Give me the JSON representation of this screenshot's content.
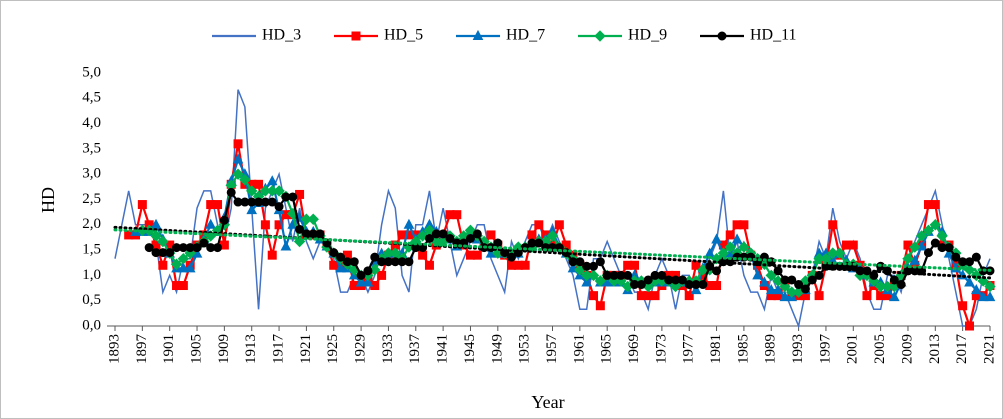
{
  "chart_data": {
    "type": "line",
    "y_label": "HD",
    "x_label": "Year",
    "x": [
      1893,
      1894,
      1895,
      1896,
      1897,
      1898,
      1899,
      1900,
      1901,
      1902,
      1903,
      1904,
      1905,
      1906,
      1907,
      1908,
      1909,
      1910,
      1911,
      1912,
      1913,
      1914,
      1915,
      1916,
      1917,
      1918,
      1919,
      1920,
      1921,
      1922,
      1923,
      1924,
      1925,
      1926,
      1927,
      1928,
      1929,
      1930,
      1931,
      1932,
      1933,
      1934,
      1935,
      1936,
      1937,
      1938,
      1939,
      1940,
      1941,
      1942,
      1943,
      1944,
      1945,
      1946,
      1947,
      1948,
      1949,
      1950,
      1951,
      1952,
      1953,
      1954,
      1955,
      1956,
      1957,
      1958,
      1959,
      1960,
      1961,
      1962,
      1963,
      1964,
      1965,
      1966,
      1967,
      1968,
      1969,
      1970,
      1971,
      1972,
      1973,
      1974,
      1975,
      1976,
      1977,
      1978,
      1979,
      1980,
      1981,
      1982,
      1983,
      1984,
      1985,
      1986,
      1987,
      1988,
      1989,
      1990,
      1991,
      1992,
      1993,
      1994,
      1995,
      1996,
      1997,
      1998,
      1999,
      2000,
      2001,
      2002,
      2003,
      2004,
      2005,
      2006,
      2007,
      2008,
      2009,
      2010,
      2011,
      2012,
      2013,
      2014,
      2015,
      2016,
      2017,
      2018,
      2019,
      2020,
      2021
    ],
    "series": [
      {
        "name": "HD_3",
        "color": "#4472c4",
        "marker": "none",
        "values": [
          1.33,
          2.0,
          2.67,
          2.0,
          2.0,
          2.0,
          1.67,
          0.67,
          1.0,
          0.67,
          1.33,
          1.33,
          2.33,
          2.67,
          2.67,
          2.0,
          1.67,
          2.33,
          4.67,
          4.33,
          2.33,
          0.33,
          2.33,
          2.67,
          3.0,
          2.33,
          1.67,
          2.33,
          1.67,
          1.33,
          1.67,
          1.67,
          1.33,
          0.67,
          0.67,
          1.0,
          1.0,
          0.67,
          1.0,
          2.0,
          2.67,
          2.33,
          1.0,
          0.67,
          2.0,
          2.0,
          2.67,
          1.67,
          2.33,
          1.67,
          1.0,
          1.33,
          1.67,
          2.0,
          2.0,
          1.33,
          1.0,
          0.67,
          1.67,
          1.33,
          1.67,
          2.0,
          2.0,
          1.67,
          2.0,
          1.67,
          1.33,
          1.0,
          0.33,
          0.33,
          1.33,
          1.33,
          1.67,
          1.33,
          1.0,
          1.0,
          0.67,
          0.67,
          0.33,
          1.0,
          1.33,
          1.0,
          0.33,
          1.0,
          1.0,
          0.67,
          1.0,
          1.33,
          1.67,
          2.67,
          1.33,
          1.67,
          1.0,
          0.67,
          0.67,
          0.33,
          1.0,
          0.67,
          0.67,
          0.33,
          0.0,
          0.67,
          1.0,
          1.67,
          1.33,
          2.33,
          1.67,
          1.33,
          1.67,
          1.33,
          0.67,
          0.33,
          0.33,
          1.0,
          1.0,
          0.67,
          1.33,
          1.67,
          2.0,
          2.33,
          2.67,
          2.0,
          1.33,
          0.67,
          0.0,
          0.0,
          0.33,
          1.0,
          1.33
        ]
      },
      {
        "name": "HD_5",
        "color": "#ff0000",
        "marker": "square",
        "values": [
          null,
          null,
          1.8,
          1.8,
          2.4,
          2.0,
          1.6,
          1.2,
          1.6,
          0.8,
          0.8,
          1.2,
          1.6,
          1.8,
          2.4,
          2.4,
          1.6,
          2.8,
          3.6,
          2.8,
          2.8,
          2.8,
          2.0,
          1.4,
          2.0,
          2.2,
          2.2,
          2.6,
          1.8,
          1.8,
          1.8,
          1.6,
          1.2,
          1.2,
          1.4,
          0.8,
          0.8,
          1.0,
          0.8,
          1.0,
          1.4,
          1.6,
          1.8,
          1.8,
          1.8,
          1.4,
          1.2,
          1.6,
          1.8,
          2.2,
          2.2,
          1.6,
          1.4,
          1.4,
          1.6,
          1.8,
          1.6,
          1.4,
          1.2,
          1.2,
          1.2,
          1.8,
          2.0,
          1.8,
          1.6,
          2.0,
          1.6,
          1.4,
          1.2,
          1.0,
          0.6,
          0.4,
          1.0,
          1.0,
          1.0,
          1.2,
          1.2,
          0.6,
          0.6,
          0.6,
          0.8,
          1.0,
          1.0,
          0.8,
          0.6,
          1.2,
          1.0,
          0.8,
          0.8,
          1.6,
          1.8,
          2.0,
          2.0,
          1.4,
          1.2,
          0.8,
          0.6,
          0.6,
          0.8,
          0.6,
          0.6,
          0.6,
          1.0,
          0.6,
          1.2,
          2.0,
          1.4,
          1.6,
          1.6,
          1.2,
          0.6,
          0.8,
          0.6,
          0.6,
          0.8,
          1.0,
          1.6,
          1.2,
          1.6,
          2.4,
          2.4,
          1.6,
          1.6,
          1.2,
          0.4,
          0.0,
          0.6,
          0.6,
          0.8
        ]
      },
      {
        "name": "HD_7",
        "color": "#0070c0",
        "marker": "triangle",
        "values": [
          null,
          null,
          null,
          1.86,
          1.86,
          1.86,
          2.0,
          1.71,
          1.43,
          1.14,
          1.14,
          1.14,
          1.43,
          1.71,
          2.0,
          1.86,
          2.14,
          2.86,
          3.29,
          3.0,
          2.29,
          2.43,
          2.71,
          2.86,
          2.29,
          1.57,
          2.0,
          2.14,
          1.86,
          1.86,
          1.71,
          1.57,
          1.43,
          1.14,
          1.14,
          1.0,
          0.86,
          0.86,
          1.29,
          1.43,
          1.43,
          1.43,
          1.43,
          2.0,
          1.71,
          1.86,
          2.0,
          1.86,
          1.71,
          1.71,
          1.57,
          1.71,
          1.86,
          1.71,
          1.57,
          1.43,
          1.43,
          1.43,
          1.43,
          1.43,
          1.57,
          1.57,
          1.71,
          1.71,
          1.86,
          1.57,
          1.43,
          1.14,
          1.0,
          0.86,
          1.0,
          0.86,
          0.86,
          0.86,
          0.86,
          0.71,
          1.0,
          0.86,
          0.86,
          0.86,
          0.86,
          0.86,
          0.86,
          0.86,
          0.86,
          0.71,
          1.14,
          1.43,
          1.71,
          1.43,
          1.43,
          1.71,
          1.57,
          1.43,
          1.0,
          0.86,
          0.71,
          0.71,
          0.57,
          0.57,
          0.71,
          0.71,
          1.0,
          1.43,
          1.43,
          1.29,
          1.43,
          1.29,
          1.14,
          1.14,
          1.0,
          0.86,
          0.86,
          0.71,
          0.57,
          0.86,
          1.14,
          1.29,
          1.57,
          1.86,
          2.0,
          1.86,
          1.43,
          1.14,
          1.0,
          0.86,
          0.71,
          0.57,
          0.57
        ]
      },
      {
        "name": "HD_9",
        "color": "#00b050",
        "marker": "diamond",
        "values": [
          null,
          null,
          null,
          null,
          1.89,
          1.89,
          1.78,
          1.67,
          1.44,
          1.22,
          1.33,
          1.44,
          1.56,
          1.67,
          1.78,
          1.89,
          2.0,
          2.78,
          3.0,
          2.89,
          2.67,
          2.56,
          2.67,
          2.67,
          2.67,
          2.56,
          2.22,
          1.67,
          2.11,
          2.11,
          1.78,
          1.56,
          1.44,
          1.33,
          1.22,
          1.11,
          1.0,
          1.0,
          1.11,
          1.33,
          1.44,
          1.44,
          1.33,
          1.56,
          1.67,
          1.78,
          1.89,
          1.67,
          1.67,
          1.78,
          1.67,
          1.78,
          1.89,
          1.78,
          1.67,
          1.56,
          1.44,
          1.44,
          1.44,
          1.56,
          1.56,
          1.56,
          1.67,
          1.67,
          1.78,
          1.56,
          1.44,
          1.33,
          1.11,
          1.0,
          1.0,
          0.89,
          1.0,
          0.89,
          0.89,
          0.78,
          0.89,
          0.89,
          0.78,
          0.89,
          0.89,
          0.89,
          0.78,
          0.89,
          0.89,
          0.89,
          1.11,
          1.11,
          1.33,
          1.44,
          1.56,
          1.44,
          1.56,
          1.44,
          1.33,
          1.22,
          1.0,
          0.89,
          0.78,
          0.67,
          0.67,
          0.89,
          1.0,
          1.33,
          1.33,
          1.44,
          1.44,
          1.22,
          1.22,
          1.0,
          1.0,
          0.89,
          0.78,
          0.78,
          0.78,
          1.0,
          1.33,
          1.56,
          1.78,
          1.89,
          2.0,
          1.78,
          1.56,
          1.44,
          1.22,
          1.11,
          1.0,
          0.89,
          0.78
        ]
      },
      {
        "name": "HD_11",
        "color": "#000000",
        "marker": "circle",
        "values": [
          null,
          null,
          null,
          null,
          null,
          1.55,
          1.45,
          1.45,
          1.45,
          1.55,
          1.55,
          1.55,
          1.55,
          1.64,
          1.55,
          1.55,
          2.09,
          2.64,
          2.45,
          2.45,
          2.45,
          2.45,
          2.45,
          2.45,
          2.36,
          2.55,
          2.55,
          1.91,
          1.82,
          1.82,
          1.82,
          1.64,
          1.45,
          1.36,
          1.27,
          1.27,
          1.0,
          1.09,
          1.36,
          1.27,
          1.27,
          1.27,
          1.27,
          1.27,
          1.55,
          1.55,
          1.73,
          1.82,
          1.82,
          1.73,
          1.64,
          1.64,
          1.73,
          1.82,
          1.55,
          1.55,
          1.64,
          1.45,
          1.36,
          1.45,
          1.55,
          1.64,
          1.64,
          1.55,
          1.55,
          1.55,
          1.45,
          1.27,
          1.27,
          1.18,
          1.18,
          1.27,
          1.0,
          1.0,
          1.0,
          1.0,
          0.82,
          0.82,
          0.91,
          1.0,
          1.0,
          0.91,
          0.91,
          0.91,
          0.82,
          0.82,
          0.82,
          1.18,
          1.09,
          1.27,
          1.27,
          1.36,
          1.36,
          1.36,
          1.27,
          1.36,
          1.27,
          1.09,
          0.91,
          0.91,
          0.82,
          0.73,
          0.91,
          1.0,
          1.18,
          1.18,
          1.18,
          1.18,
          1.18,
          1.09,
          1.09,
          1.0,
          1.18,
          1.09,
          0.91,
          0.82,
          1.09,
          1.09,
          1.09,
          1.45,
          1.64,
          1.55,
          1.55,
          1.36,
          1.27,
          1.27,
          1.36,
          1.09,
          1.09
        ]
      }
    ],
    "trendlines": [
      {
        "color": "#000000",
        "x": [
          1893,
          2021
        ],
        "values": [
          1.95,
          0.95
        ]
      },
      {
        "color": "#00b050",
        "x": [
          1893,
          2021
        ],
        "values": [
          1.9,
          1.1
        ]
      }
    ],
    "xlim": [
      1893,
      2021
    ],
    "xticks": [
      1893,
      1897,
      1901,
      1905,
      1909,
      1913,
      1917,
      1921,
      1925,
      1929,
      1933,
      1937,
      1941,
      1945,
      1949,
      1953,
      1957,
      1961,
      1965,
      1969,
      1973,
      1977,
      1981,
      1985,
      1989,
      1993,
      1997,
      2001,
      2005,
      2009,
      2013,
      2017,
      2021
    ],
    "ylim": [
      0,
      5
    ],
    "yticks": [
      {
        "value": 0,
        "label": "0,0"
      },
      {
        "value": 0.5,
        "label": "0,5"
      },
      {
        "value": 1,
        "label": "1,0"
      },
      {
        "value": 1.5,
        "label": "1,5"
      },
      {
        "value": 2,
        "label": "2,0"
      },
      {
        "value": 2.5,
        "label": "2,5"
      },
      {
        "value": 3,
        "label": "3,0"
      },
      {
        "value": 3.5,
        "label": "3,5"
      },
      {
        "value": 4,
        "label": "4,0"
      },
      {
        "value": 4.5,
        "label": "4,5"
      },
      {
        "value": 5,
        "label": "5,0"
      }
    ],
    "grid": false,
    "legend": "top"
  }
}
